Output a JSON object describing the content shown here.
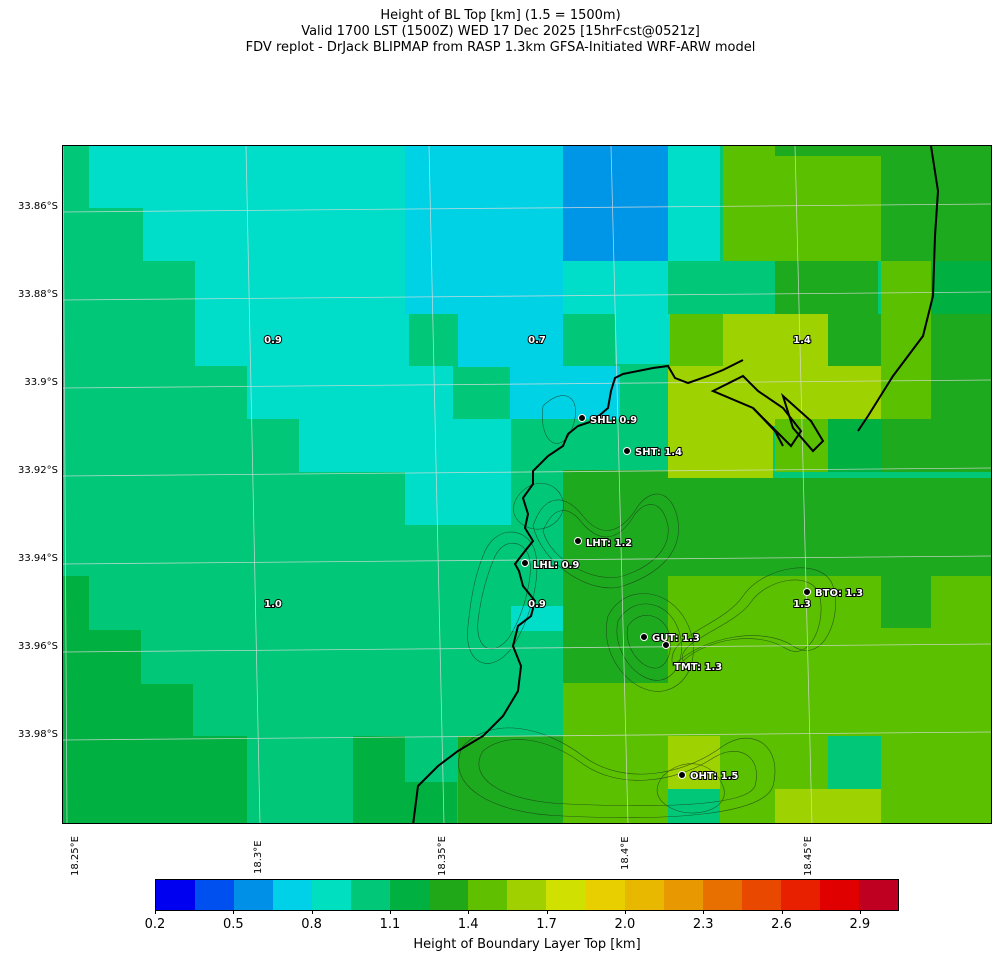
{
  "title": {
    "line1": "Height of BL Top [km] (1.5 = 1500m)",
    "line2": "Valid 1700 LST (1500Z) WED 17 Dec 2025 [15hrFcst@0521z]",
    "line3": "FDV replot - DrJack BLIPMAP from RASP 1.3km GFSA-Initiated WRF-ARW model"
  },
  "lat_labels": [
    "33.86°S",
    "33.88°S",
    "33.9°S",
    "33.92°S",
    "33.94°S",
    "33.96°S",
    "33.98°S"
  ],
  "lon_labels": [
    "18.25°E",
    "18.3°E",
    "18.35°E",
    "18.4°E",
    "18.45°E"
  ],
  "grid_values": [
    "0.9",
    "0.7",
    "1.4",
    "1.0",
    "0.9",
    "1.3"
  ],
  "stations": [
    {
      "code": "SHL",
      "value": "0.9",
      "label": "SHL: 0.9"
    },
    {
      "code": "SHT",
      "value": "1.4",
      "label": "SHT: 1.4"
    },
    {
      "code": "LHT",
      "value": "1.2",
      "label": "LHT: 1.2"
    },
    {
      "code": "LHL",
      "value": "0.9",
      "label": "LHL: 0.9"
    },
    {
      "code": "BTO",
      "value": "1.3",
      "label": "BTO: 1.3"
    },
    {
      "code": "GUT",
      "value": "1.3",
      "label": "GUT: 1.3"
    },
    {
      "code": "TMT",
      "value": "1.3",
      "label": "TMT: 1.3"
    },
    {
      "code": "OHT",
      "value": "1.5",
      "label": "OHT: 1.5"
    }
  ],
  "colorbar": {
    "label": "Height of Boundary Layer Top [km]",
    "ticks": [
      "0.2",
      "0.5",
      "0.8",
      "1.1",
      "1.4",
      "1.7",
      "2.0",
      "2.3",
      "2.6",
      "2.9"
    ],
    "colors": [
      "#0000f0",
      "#0050f0",
      "#0090e8",
      "#00d0e8",
      "#00e0c0",
      "#00c878",
      "#00b040",
      "#20a818",
      "#60c000",
      "#a0d000",
      "#d0e000",
      "#e8d000",
      "#e8b800",
      "#e89800",
      "#e87000",
      "#e84800",
      "#e82000",
      "#e00000",
      "#c00020"
    ]
  },
  "palette": {
    "c07": "#00d2e6",
    "c08": "#00deca",
    "c10": "#00c878",
    "c12": "#00b040",
    "c13": "#1eaa1e",
    "c14": "#5ac000",
    "c15": "#9ed200",
    "c06": "#0096e8"
  }
}
